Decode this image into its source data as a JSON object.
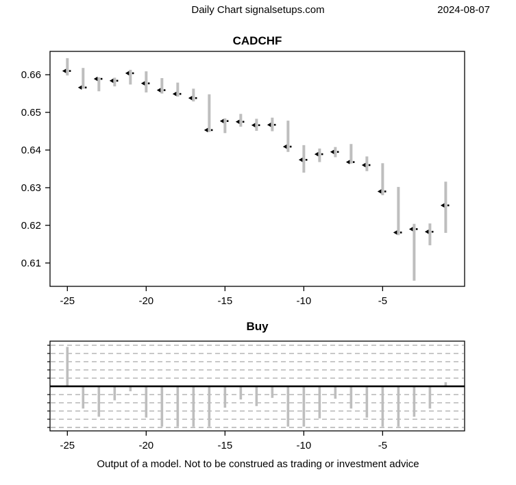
{
  "header": {
    "title": "Daily Chart signalsetups.com",
    "date": "2024-08-07"
  },
  "footer": {
    "disclaimer": "Output of a model. Not to be construed as trading or investment advice"
  },
  "colors": {
    "bar": "#bebebe",
    "marker": "#000000",
    "grid_dash": "#a8a8a8",
    "zero_line": "#000000",
    "axis": "#000000",
    "background": "#ffffff"
  },
  "chart_data": [
    {
      "type": "bar",
      "subtype": "high-low-close price bars",
      "title": "CADCHF",
      "xlabel": "",
      "ylabel": "",
      "x": [
        -25,
        -24,
        -23,
        -22,
        -21,
        -20,
        -19,
        -18,
        -17,
        -16,
        -15,
        -14,
        -13,
        -12,
        -11,
        -10,
        -9,
        -8,
        -7,
        -6,
        -5,
        -4,
        -3,
        -2,
        -1
      ],
      "high": [
        0.6644,
        0.6618,
        0.6593,
        0.6592,
        0.6613,
        0.6609,
        0.6591,
        0.6579,
        0.6563,
        0.6548,
        0.6484,
        0.6496,
        0.6483,
        0.6486,
        0.6478,
        0.6413,
        0.6404,
        0.6408,
        0.6416,
        0.6383,
        0.6365,
        0.6302,
        0.6204,
        0.6205,
        0.6316
      ],
      "low": [
        0.6598,
        0.6563,
        0.6556,
        0.6569,
        0.6574,
        0.6553,
        0.655,
        0.6542,
        0.6529,
        0.6448,
        0.6445,
        0.6462,
        0.6451,
        0.645,
        0.6395,
        0.634,
        0.6368,
        0.6381,
        0.6364,
        0.6344,
        0.628,
        0.6174,
        0.6053,
        0.6147,
        0.618
      ],
      "close": [
        0.661,
        0.6566,
        0.6589,
        0.6584,
        0.6604,
        0.6577,
        0.6559,
        0.6549,
        0.6538,
        0.6453,
        0.6477,
        0.6475,
        0.6466,
        0.6467,
        0.6409,
        0.6374,
        0.6389,
        0.6395,
        0.6368,
        0.636,
        0.629,
        0.6181,
        0.619,
        0.6183,
        0.6253
      ],
      "xtick_values": [
        -25,
        -20,
        -15,
        -10,
        -5
      ],
      "xtick_labels": [
        "-25",
        "-20",
        "-15",
        "-10",
        "-5"
      ],
      "ytick_values": [
        0.61,
        0.62,
        0.63,
        0.64,
        0.65,
        0.66
      ],
      "ytick_labels": [
        "0.61",
        "0.62",
        "0.63",
        "0.64",
        "0.65",
        "0.66"
      ],
      "xlim": [
        -26.1,
        0.2
      ],
      "ylim": [
        0.6038,
        0.6662
      ],
      "grid": "off",
      "legend": "none"
    },
    {
      "type": "bar",
      "subtype": "signal bars from zero line",
      "title": "Buy",
      "xlabel": "",
      "ylabel": "",
      "x": [
        -25,
        -24,
        -23,
        -22,
        -21,
        -20,
        -19,
        -18,
        -17,
        -16,
        -15,
        -14,
        -13,
        -12,
        -11,
        -10,
        -9,
        -8,
        -7,
        -6,
        -5,
        -4,
        -3,
        -2,
        -1
      ],
      "values": [
        4.8,
        -2.7,
        -3.7,
        -1.7,
        -0.6,
        -3.8,
        -4.9,
        -4.9,
        -4.9,
        -4.9,
        -2.6,
        -1.6,
        -2.4,
        -1.4,
        -4.9,
        -4.9,
        -3.9,
        -1.5,
        -2.7,
        -3.8,
        -4.9,
        -4.9,
        -3.7,
        -2.7,
        0.5
      ],
      "values_unit": "dashed-gridline units (no y-axis labels shown)",
      "zero_line": 0,
      "gridline_values": [
        -5,
        -4,
        -3,
        -2,
        -1,
        1,
        2,
        3,
        4,
        5
      ],
      "xtick_values": [
        -25,
        -20,
        -15,
        -10,
        -5
      ],
      "xtick_labels": [
        "-25",
        "-20",
        "-15",
        "-10",
        "-5"
      ],
      "xlim": [
        -26.1,
        0.2
      ],
      "ylim": [
        -5.42,
        5.5
      ],
      "grid": "horizontal dashed",
      "legend": "none"
    }
  ]
}
